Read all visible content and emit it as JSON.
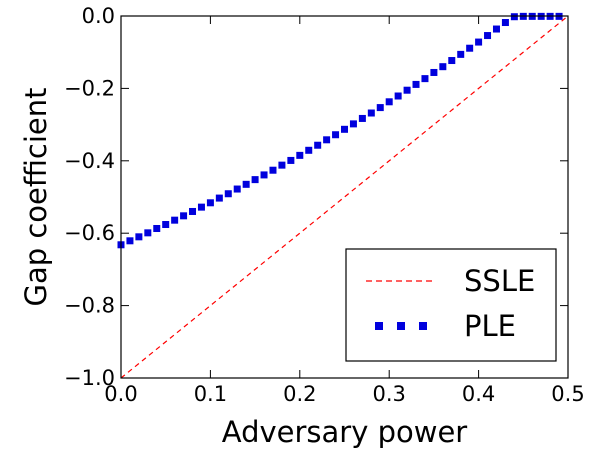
{
  "chart_data": {
    "type": "line",
    "xlabel": "Adversary power",
    "ylabel": "Gap coefficient",
    "xlim": [
      0.0,
      0.5
    ],
    "ylim": [
      -1.0,
      0.0
    ],
    "x_ticks": [
      "0.0",
      "0.1",
      "0.2",
      "0.3",
      "0.4",
      "0.5"
    ],
    "y_ticks": [
      "0.0",
      "−0.2",
      "−0.4",
      "−0.6",
      "−0.8",
      "−1.0"
    ],
    "x_tick_values": [
      0.0,
      0.1,
      0.2,
      0.3,
      0.4,
      0.5
    ],
    "y_tick_values": [
      0.0,
      -0.2,
      -0.4,
      -0.6,
      -0.8,
      -1.0
    ],
    "grid": false,
    "legend_position": "bottom-right",
    "series": [
      {
        "name": "SSLE",
        "style": "dashed",
        "color": "#ff0000",
        "x": [
          0.0,
          0.5
        ],
        "y": [
          -1.0,
          0.0
        ]
      },
      {
        "name": "PLE",
        "style": "square-markers",
        "color": "#0000dd",
        "x": [
          0.0,
          0.01,
          0.02,
          0.03,
          0.04,
          0.05,
          0.06,
          0.07,
          0.08,
          0.09,
          0.1,
          0.11,
          0.12,
          0.13,
          0.14,
          0.15,
          0.16,
          0.17,
          0.18,
          0.19,
          0.2,
          0.21,
          0.22,
          0.23,
          0.24,
          0.25,
          0.26,
          0.27,
          0.28,
          0.29,
          0.3,
          0.31,
          0.32,
          0.33,
          0.34,
          0.35,
          0.36,
          0.37,
          0.38,
          0.39,
          0.4,
          0.41,
          0.42,
          0.43,
          0.44,
          0.45,
          0.46,
          0.47,
          0.48,
          0.49
        ],
        "y": [
          -0.632,
          -0.621,
          -0.61,
          -0.599,
          -0.587,
          -0.576,
          -0.564,
          -0.552,
          -0.54,
          -0.528,
          -0.516,
          -0.503,
          -0.491,
          -0.478,
          -0.465,
          -0.452,
          -0.439,
          -0.426,
          -0.412,
          -0.399,
          -0.385,
          -0.371,
          -0.357,
          -0.342,
          -0.328,
          -0.313,
          -0.298,
          -0.283,
          -0.268,
          -0.253,
          -0.237,
          -0.221,
          -0.205,
          -0.189,
          -0.173,
          -0.156,
          -0.14,
          -0.123,
          -0.106,
          -0.089,
          -0.072,
          -0.054,
          -0.036,
          -0.018,
          -0.002,
          -0.001,
          -0.001,
          -0.001,
          -0.001,
          -0.001
        ]
      }
    ]
  }
}
